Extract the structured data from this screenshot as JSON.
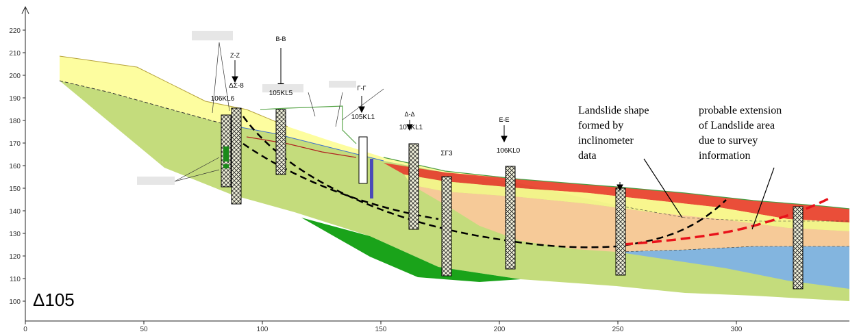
{
  "section_label": "Δ105",
  "annotations": {
    "landslide_shape": [
      "Landslide shape",
      "formed by",
      "inclinometer",
      "data"
    ],
    "probable_extension": [
      "probable extension",
      "of Landslide area",
      "due to survey",
      "information"
    ]
  },
  "axes": {
    "y_ticks": [
      "220",
      "210",
      "200",
      "190",
      "180",
      "170",
      "160",
      "150",
      "140",
      "130",
      "120",
      "110",
      "100"
    ],
    "x_ticks": [
      "0",
      "50",
      "100",
      "150",
      "200",
      "250",
      "300"
    ]
  },
  "sections": [
    "Ζ-Ζ",
    "B-B",
    "Γ-Γ",
    "Δ-Δ",
    "E-E"
  ],
  "boreholes": [
    {
      "label": "106KL6"
    },
    {
      "label": "ΔΣ-8"
    },
    {
      "label": "105KL5"
    },
    {
      "label": "105KL1"
    },
    {
      "label": "107KL1"
    },
    {
      "label": "ΣΓ3"
    },
    {
      "label": "106KL0"
    }
  ],
  "colors": {
    "topsoil": "#fdfd9f",
    "green_layer": "#c4dc7c",
    "dark_green": "#1aa31a",
    "red_layer": "#e83b2e",
    "orange_layer": "#f9c89a",
    "blue_layer": "#7fb2e5",
    "dashed_red": "#e8121a"
  }
}
